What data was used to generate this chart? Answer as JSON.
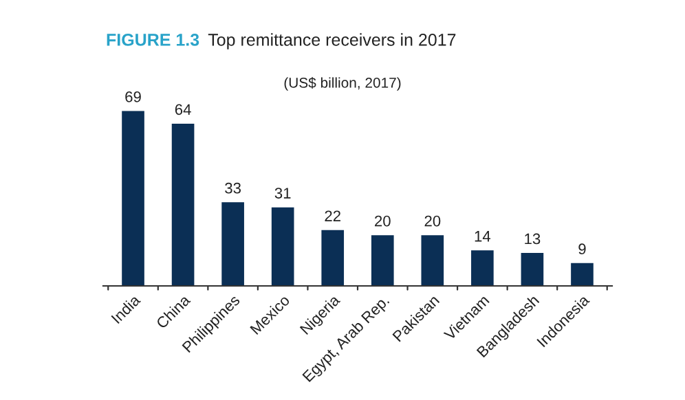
{
  "chart_data": {
    "type": "bar",
    "title": "Top remittance receivers in 2017",
    "subtitle": "(US$ billion, 2017)",
    "annotations": [
      "FIGURE 1.3"
    ],
    "categories": [
      "India",
      "China",
      "Philippines",
      "Mexico",
      "Nigeria",
      "Egypt, Arab Rep.",
      "Pakistan",
      "Vietnam",
      "Bangladesh",
      "Indonesia"
    ],
    "values": [
      69,
      64,
      33,
      31,
      22,
      20,
      20,
      14,
      13,
      9
    ],
    "color": "#0b2f55",
    "data_labels": true
  }
}
